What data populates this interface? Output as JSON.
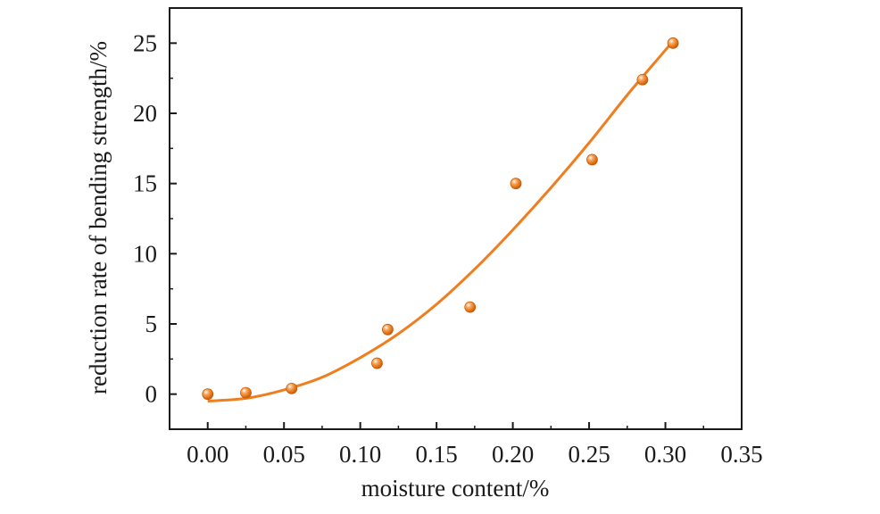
{
  "chart_data": {
    "type": "scatter",
    "title": "",
    "xlabel": "moisture content/%",
    "ylabel": "reduction rate of bending strength/%",
    "xlim": [
      -0.025,
      0.35
    ],
    "ylim": [
      -2.5,
      27.5
    ],
    "x_ticks": [
      "0.00",
      "0.05",
      "0.10",
      "0.15",
      "0.20",
      "0.25",
      "0.30",
      "0.35"
    ],
    "y_ticks": [
      "0",
      "5",
      "10",
      "15",
      "20",
      "25"
    ],
    "grid": false,
    "legend": "none",
    "series": [
      {
        "kind": "scatter",
        "color": "#f07d1e",
        "points": [
          {
            "x": 0.0,
            "y": 0.0
          },
          {
            "x": 0.025,
            "y": 0.1
          },
          {
            "x": 0.055,
            "y": 0.4
          },
          {
            "x": 0.111,
            "y": 2.2
          },
          {
            "x": 0.118,
            "y": 4.6
          },
          {
            "x": 0.172,
            "y": 6.2
          },
          {
            "x": 0.202,
            "y": 15.0
          },
          {
            "x": 0.252,
            "y": 16.7
          },
          {
            "x": 0.285,
            "y": 22.4
          },
          {
            "x": 0.305,
            "y": 25.0
          }
        ]
      },
      {
        "kind": "fit-curve",
        "color": "#f07d1e",
        "points": [
          {
            "x": 0.0,
            "y": -0.5
          },
          {
            "x": 0.025,
            "y": -0.3
          },
          {
            "x": 0.05,
            "y": 0.3
          },
          {
            "x": 0.075,
            "y": 1.2
          },
          {
            "x": 0.1,
            "y": 2.6
          },
          {
            "x": 0.125,
            "y": 4.3
          },
          {
            "x": 0.15,
            "y": 6.4
          },
          {
            "x": 0.175,
            "y": 8.9
          },
          {
            "x": 0.2,
            "y": 11.7
          },
          {
            "x": 0.225,
            "y": 14.7
          },
          {
            "x": 0.25,
            "y": 17.9
          },
          {
            "x": 0.275,
            "y": 21.3
          },
          {
            "x": 0.3,
            "y": 24.5
          },
          {
            "x": 0.306,
            "y": 25.3
          }
        ]
      }
    ]
  }
}
